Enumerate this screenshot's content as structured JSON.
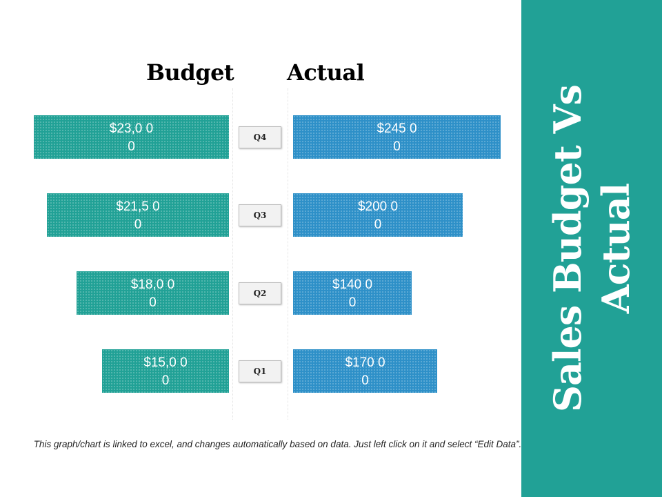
{
  "slide": {
    "title": "Sales Budget Vs Actual",
    "footnote": "This graph/chart is linked to excel, and changes automatically based on data. Just left click on it and select “Edit Data”.",
    "colors": {
      "budget": "#21a196",
      "actual": "#2e90c8",
      "panel": "#21a196"
    }
  },
  "chart_data": {
    "type": "bar",
    "orientation": "horizontal-back-to-back",
    "categories": [
      "Q4",
      "Q3",
      "Q2",
      "Q1"
    ],
    "series": [
      {
        "name": "Budget",
        "values": [
          23000,
          21500,
          18000,
          15000
        ],
        "labels": [
          "$23,0 00",
          "$21,5 00",
          "$18,0 00",
          "$15,0 00"
        ]
      },
      {
        "name": "Actual",
        "values": [
          24500,
          20000,
          14000,
          17000
        ],
        "labels": [
          "$245 00",
          "$200 00",
          "$140 00",
          "$170 00"
        ]
      }
    ],
    "title": "",
    "xlabel": "",
    "ylabel": "",
    "grid": false,
    "legend": "top"
  }
}
